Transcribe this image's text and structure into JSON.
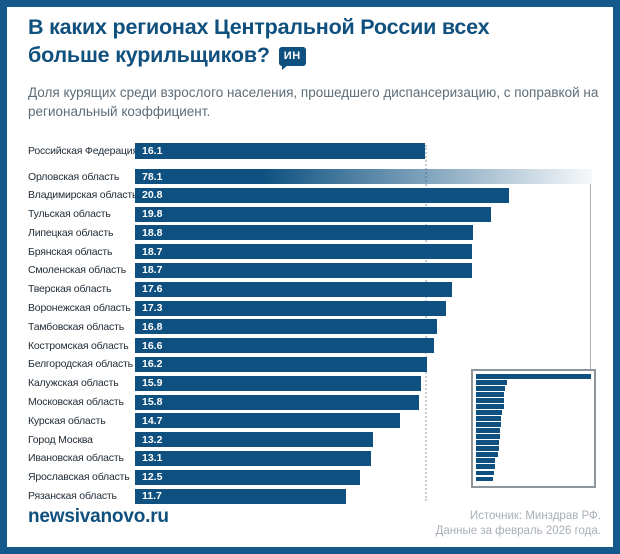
{
  "header": {
    "title_line1": "В каких регионах Центральной России всех",
    "title_line2": "больше курильщиков?",
    "badge": "ИН",
    "subtitle": "Доля курящих среди взрослого населения, прошедшего диспансеризацию, с поправкой на региональный коэффициент."
  },
  "chart_data": {
    "type": "bar",
    "orientation": "horizontal",
    "title": "В каких регионах Центральной России всех больше курильщиков?",
    "subtitle": "Доля курящих среди взрослого населения, прошедшего диспансеризацию, с поправкой на региональный коэффициент.",
    "value_unit": "percent",
    "reference": {
      "label": "Российская Федерация",
      "value": 16.1
    },
    "categories": [
      "Орловская область",
      "Владимирская область",
      "Тульская область",
      "Липецкая область",
      "Брянская область",
      "Смоленская область",
      "Тверская область",
      "Воронежская область",
      "Тамбовская область",
      "Костромская область",
      "Белгородская область",
      "Калужская область",
      "Московская область",
      "Курская область",
      "Город Москва",
      "Ивановская область",
      "Ярославская область",
      "Рязанская область"
    ],
    "values": [
      78.1,
      20.8,
      19.8,
      18.8,
      18.7,
      18.7,
      17.6,
      17.3,
      16.8,
      16.6,
      16.2,
      15.9,
      15.8,
      14.7,
      13.2,
      13.1,
      12.5,
      11.7
    ],
    "outlier": {
      "label": "Орловская область",
      "value": 78.1,
      "clipped_in_main_view": true
    },
    "inset": {
      "shows": "same regions at true scale",
      "max_value": 78.1
    },
    "grid": false,
    "legend": false
  },
  "footer": {
    "site": "newsivanovo.ru",
    "source_line1": "Источник: Минздрав РФ.",
    "source_line2": "Данные за февраль 2026 года."
  },
  "colors": {
    "frame": "#13598c",
    "bar": "#0e5180",
    "title": "#10507e",
    "subtitle": "#5d6d79",
    "dotted": "#c2ccd4",
    "connector": "#aab3ba",
    "inset-border": "#8d969d",
    "source": "#a7afb7"
  }
}
